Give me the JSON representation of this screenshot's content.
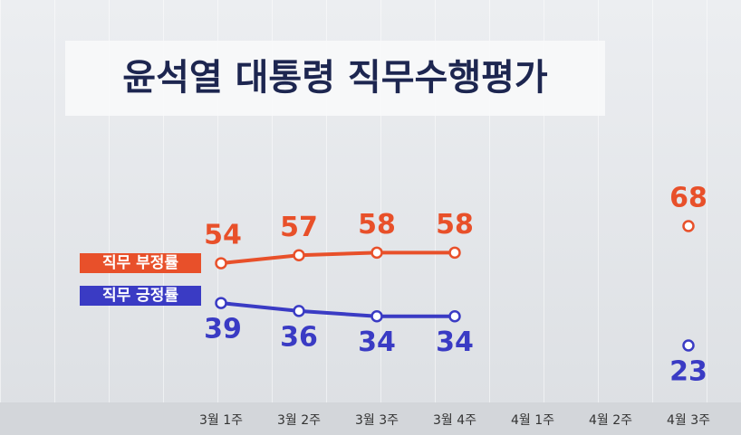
{
  "chart_data": {
    "type": "line",
    "title": "윤석열 대통령 직무수행평가",
    "categories": [
      "3월 1주",
      "3월 2주",
      "3월 3주",
      "3월 4주",
      "4월 1주",
      "4월 2주",
      "4월 3주"
    ],
    "series": [
      {
        "name": "직무 부정률",
        "color": "#e8502a",
        "values": [
          54,
          57,
          58,
          58,
          null,
          null,
          68
        ]
      },
      {
        "name": "직무 긍정률",
        "color": "#3a3bc4",
        "values": [
          39,
          36,
          34,
          34,
          null,
          null,
          23
        ]
      }
    ]
  }
}
